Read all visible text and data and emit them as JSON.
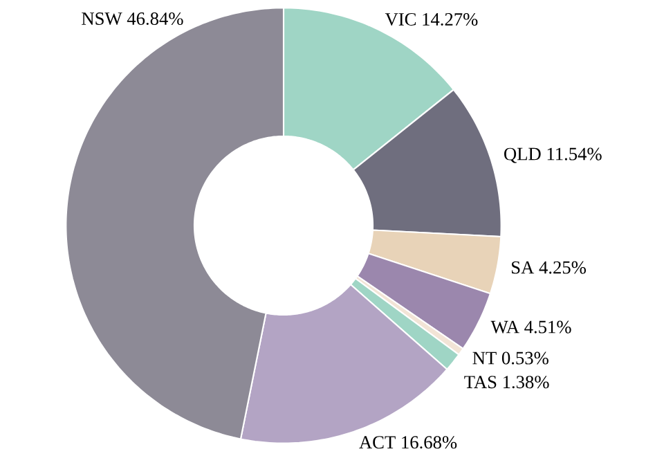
{
  "chart_data": {
    "type": "donut",
    "categories": [
      "VIC",
      "QLD",
      "SA",
      "WA",
      "NT",
      "TAS",
      "ACT",
      "NSW"
    ],
    "values": [
      14.27,
      11.54,
      4.25,
      4.51,
      0.53,
      1.38,
      16.68,
      46.84
    ],
    "value_labels": [
      "14.27%",
      "11.54%",
      "4.25%",
      "4.51%",
      "0.53%",
      "1.38%",
      "16.68%",
      "46.84%"
    ],
    "colors": [
      "#9fd5c5",
      "#6f6e7e",
      "#e8d3b8",
      "#9b87ad",
      "#f2e4d6",
      "#9fd5c5",
      "#b3a4c4",
      "#8d8a96"
    ]
  }
}
